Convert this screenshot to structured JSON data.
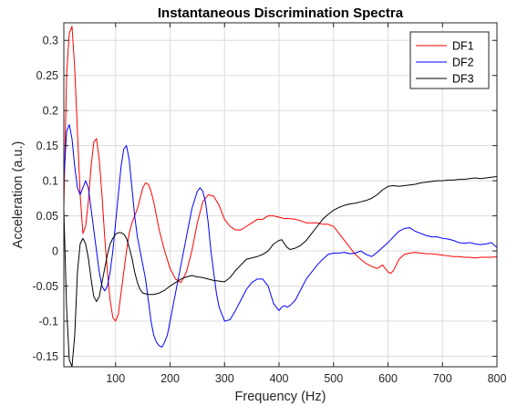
{
  "chart_data": {
    "type": "line",
    "title": "Instantaneous Discrimination Spectra",
    "xlabel": "Frequency (Hz)",
    "ylabel": "Acceleration (a.u.)",
    "xlim": [
      5,
      800
    ],
    "ylim": [
      -0.165,
      0.325
    ],
    "xticks": [
      100,
      200,
      300,
      400,
      500,
      600,
      700,
      800
    ],
    "yticks": [
      -0.15,
      -0.1,
      -0.05,
      0,
      0.05,
      0.1,
      0.15,
      0.2,
      0.25,
      0.3
    ],
    "xtick_labels": [
      "100",
      "200",
      "300",
      "400",
      "500",
      "600",
      "700",
      "800"
    ],
    "ytick_labels": [
      "-0.15",
      "-0.1",
      "-0.05",
      "0",
      "0.05",
      "0.1",
      "0.15",
      "0.2",
      "0.25",
      "0.3"
    ],
    "grid": true,
    "legend_position": "top-right",
    "series": [
      {
        "name": "DF1",
        "color": "#ff0000",
        "x": [
          5,
          10,
          15,
          20,
          25,
          30,
          35,
          40,
          45,
          50,
          55,
          60,
          65,
          70,
          75,
          80,
          85,
          90,
          95,
          100,
          105,
          110,
          115,
          120,
          125,
          130,
          135,
          140,
          145,
          150,
          155,
          160,
          165,
          170,
          175,
          180,
          190,
          200,
          210,
          220,
          230,
          240,
          250,
          260,
          270,
          280,
          290,
          300,
          310,
          320,
          330,
          340,
          350,
          360,
          370,
          380,
          390,
          400,
          410,
          420,
          430,
          440,
          450,
          460,
          470,
          480,
          490,
          500,
          510,
          520,
          530,
          540,
          550,
          560,
          570,
          580,
          590,
          600,
          605,
          610,
          615,
          620,
          630,
          640,
          650,
          660,
          670,
          680,
          690,
          700,
          710,
          720,
          730,
          740,
          750,
          760,
          770,
          780,
          790,
          800
        ],
        "y": [
          0.06,
          0.25,
          0.31,
          0.32,
          0.26,
          0.17,
          0.08,
          0.025,
          0.035,
          0.07,
          0.12,
          0.155,
          0.16,
          0.13,
          0.08,
          0.02,
          -0.03,
          -0.07,
          -0.095,
          -0.1,
          -0.09,
          -0.06,
          -0.03,
          0.0,
          0.025,
          0.04,
          0.05,
          0.06,
          0.075,
          0.09,
          0.097,
          0.095,
          0.085,
          0.07,
          0.05,
          0.03,
          0.0,
          -0.025,
          -0.04,
          -0.045,
          -0.03,
          0.0,
          0.04,
          0.07,
          0.08,
          0.078,
          0.065,
          0.045,
          0.035,
          0.03,
          0.03,
          0.035,
          0.04,
          0.045,
          0.045,
          0.05,
          0.05,
          0.048,
          0.046,
          0.046,
          0.045,
          0.043,
          0.04,
          0.04,
          0.04,
          0.038,
          0.038,
          0.035,
          0.025,
          0.015,
          0.005,
          -0.005,
          -0.012,
          -0.018,
          -0.022,
          -0.025,
          -0.02,
          -0.03,
          -0.032,
          -0.028,
          -0.02,
          -0.012,
          -0.005,
          -0.003,
          -0.002,
          -0.003,
          -0.004,
          -0.004,
          -0.005,
          -0.006,
          -0.007,
          -0.008,
          -0.008,
          -0.009,
          -0.009,
          -0.01,
          -0.009,
          -0.009,
          -0.009,
          -0.008
        ]
      },
      {
        "name": "DF2",
        "color": "#0000ff",
        "x": [
          5,
          10,
          15,
          20,
          25,
          30,
          35,
          40,
          45,
          50,
          55,
          60,
          65,
          70,
          75,
          80,
          85,
          90,
          95,
          100,
          105,
          110,
          115,
          120,
          125,
          130,
          135,
          140,
          145,
          150,
          155,
          160,
          165,
          170,
          175,
          180,
          185,
          190,
          195,
          200,
          210,
          220,
          230,
          240,
          250,
          255,
          260,
          265,
          270,
          275,
          280,
          285,
          290,
          300,
          310,
          320,
          330,
          340,
          350,
          360,
          370,
          380,
          390,
          400,
          405,
          410,
          415,
          420,
          430,
          440,
          450,
          460,
          470,
          480,
          490,
          500,
          510,
          520,
          530,
          540,
          550,
          560,
          570,
          580,
          590,
          600,
          610,
          620,
          630,
          640,
          650,
          660,
          670,
          680,
          690,
          700,
          710,
          720,
          730,
          740,
          750,
          760,
          770,
          780,
          790,
          795,
          800
        ],
        "y": [
          0.1,
          0.17,
          0.18,
          0.16,
          0.12,
          0.09,
          0.08,
          0.09,
          0.1,
          0.09,
          0.06,
          0.03,
          0.0,
          -0.03,
          -0.05,
          -0.057,
          -0.05,
          -0.03,
          0.0,
          0.04,
          0.08,
          0.12,
          0.145,
          0.15,
          0.13,
          0.09,
          0.05,
          0.02,
          0.0,
          -0.02,
          -0.04,
          -0.07,
          -0.1,
          -0.12,
          -0.13,
          -0.135,
          -0.137,
          -0.13,
          -0.12,
          -0.1,
          -0.06,
          -0.02,
          0.02,
          0.06,
          0.085,
          0.09,
          0.085,
          0.07,
          0.04,
          0.0,
          -0.03,
          -0.06,
          -0.08,
          -0.1,
          -0.098,
          -0.085,
          -0.07,
          -0.055,
          -0.045,
          -0.04,
          -0.04,
          -0.05,
          -0.075,
          -0.085,
          -0.08,
          -0.078,
          -0.08,
          -0.078,
          -0.07,
          -0.055,
          -0.04,
          -0.03,
          -0.02,
          -0.012,
          -0.005,
          -0.003,
          -0.003,
          -0.002,
          -0.004,
          -0.003,
          0.0,
          -0.005,
          -0.008,
          -0.002,
          0.005,
          0.012,
          0.02,
          0.028,
          0.032,
          0.033,
          0.028,
          0.025,
          0.022,
          0.02,
          0.02,
          0.018,
          0.017,
          0.015,
          0.012,
          0.011,
          0.012,
          0.01,
          0.009,
          0.01,
          0.012,
          0.008,
          0.005
        ]
      },
      {
        "name": "DF3",
        "color": "#000000",
        "x": [
          5,
          10,
          15,
          20,
          25,
          30,
          35,
          40,
          45,
          50,
          55,
          60,
          65,
          70,
          75,
          80,
          85,
          90,
          95,
          100,
          105,
          110,
          115,
          120,
          125,
          130,
          135,
          140,
          145,
          150,
          160,
          170,
          180,
          190,
          200,
          210,
          220,
          230,
          240,
          250,
          260,
          270,
          280,
          290,
          300,
          310,
          320,
          330,
          340,
          350,
          360,
          370,
          380,
          390,
          400,
          405,
          410,
          415,
          420,
          430,
          440,
          450,
          460,
          470,
          480,
          490,
          500,
          510,
          520,
          530,
          540,
          550,
          560,
          570,
          580,
          590,
          600,
          610,
          620,
          630,
          640,
          650,
          660,
          670,
          680,
          690,
          700,
          710,
          720,
          730,
          740,
          750,
          760,
          770,
          780,
          790,
          800
        ],
        "y": [
          0.06,
          -0.08,
          -0.155,
          -0.165,
          -0.12,
          -0.03,
          0.01,
          0.018,
          0.01,
          -0.01,
          -0.04,
          -0.065,
          -0.072,
          -0.065,
          -0.045,
          -0.025,
          -0.005,
          0.01,
          0.018,
          0.024,
          0.026,
          0.026,
          0.024,
          0.018,
          0.005,
          -0.01,
          -0.03,
          -0.045,
          -0.055,
          -0.06,
          -0.062,
          -0.062,
          -0.06,
          -0.056,
          -0.05,
          -0.045,
          -0.04,
          -0.037,
          -0.035,
          -0.037,
          -0.038,
          -0.04,
          -0.042,
          -0.043,
          -0.044,
          -0.038,
          -0.028,
          -0.02,
          -0.012,
          -0.01,
          -0.008,
          -0.005,
          0.0,
          0.01,
          0.015,
          0.016,
          0.01,
          0.005,
          0.002,
          0.004,
          0.008,
          0.015,
          0.025,
          0.035,
          0.045,
          0.052,
          0.058,
          0.062,
          0.065,
          0.067,
          0.068,
          0.07,
          0.072,
          0.075,
          0.08,
          0.087,
          0.092,
          0.093,
          0.092,
          0.093,
          0.094,
          0.095,
          0.097,
          0.098,
          0.099,
          0.1,
          0.1,
          0.101,
          0.101,
          0.102,
          0.102,
          0.103,
          0.104,
          0.103,
          0.104,
          0.105,
          0.106
        ]
      }
    ]
  }
}
